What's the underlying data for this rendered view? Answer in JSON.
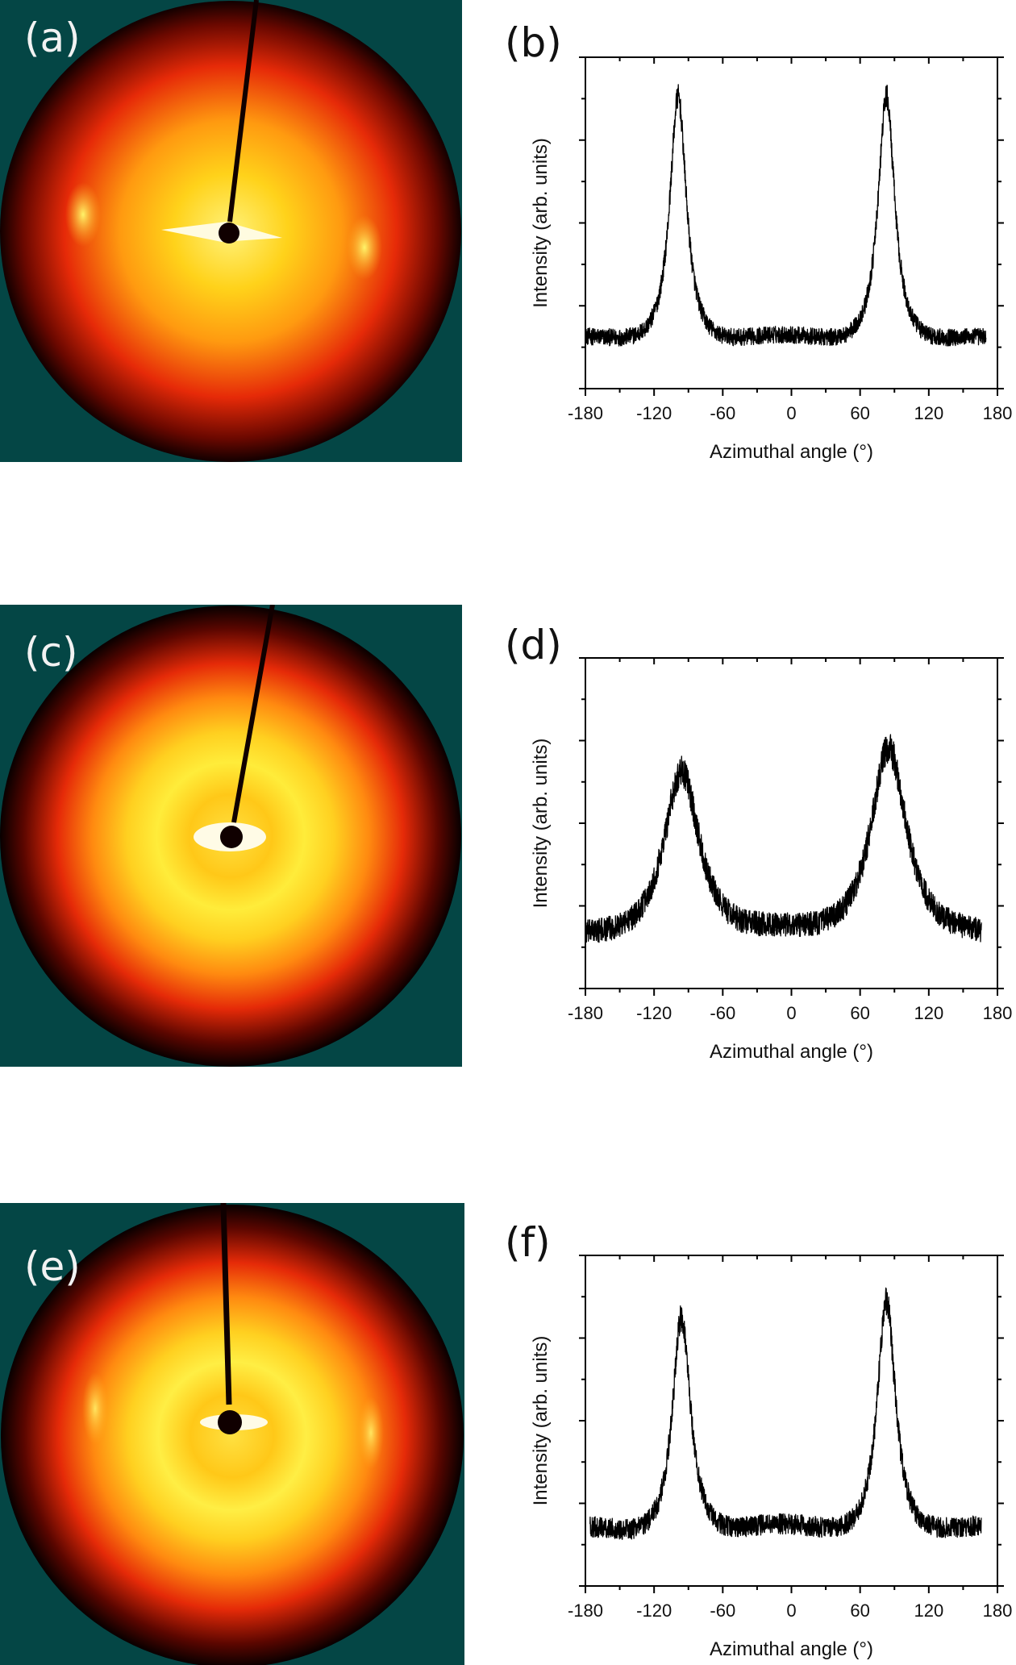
{
  "colors": {
    "detector_background": "#044645",
    "line": "#000000"
  },
  "panels": {
    "a": {
      "label": "(a)"
    },
    "b": {
      "label": "(b)"
    },
    "c": {
      "label": "(c)"
    },
    "d": {
      "label": "(d)"
    },
    "e": {
      "label": "(e)"
    },
    "f": {
      "label": "(f)"
    }
  },
  "chart_data": [
    {
      "panel": "b",
      "type": "line",
      "xlabel": "Azimuthal angle (°)",
      "ylabel": "Intensity (arb. units)",
      "xlim": [
        -180,
        180
      ],
      "ylim": [
        0,
        1
      ],
      "xticks": [
        -180,
        -120,
        -60,
        0,
        60,
        120,
        180
      ],
      "xtick_labels": [
        "-180",
        "-120",
        "-60",
        "0",
        "60",
        "120",
        "180"
      ],
      "y_tick_labels_shown": false,
      "grid": false,
      "x_range": [
        -180,
        170
      ],
      "baseline": 0.1,
      "noise": 0.025,
      "peaks": [
        {
          "center": -99,
          "height": 0.78,
          "width": 9
        },
        {
          "center": 83,
          "height": 0.78,
          "width": 9
        }
      ],
      "tails": 0.08
    },
    {
      "panel": "d",
      "type": "line",
      "xlabel": "Azimuthal angle (°)",
      "ylabel": "Intensity (arb. units)",
      "xlim": [
        -180,
        180
      ],
      "ylim": [
        0,
        1
      ],
      "xticks": [
        -180,
        -120,
        -60,
        0,
        60,
        120,
        180
      ],
      "xtick_labels": [
        "-180",
        "-120",
        "-60",
        "0",
        "60",
        "120",
        "180"
      ],
      "y_tick_labels_shown": false,
      "grid": false,
      "x_range": [
        -180,
        166
      ],
      "baseline": 0.09,
      "noise": 0.035,
      "peaks": [
        {
          "center": -96,
          "height": 0.56,
          "width": 20
        },
        {
          "center": 85,
          "height": 0.63,
          "width": 20
        }
      ],
      "tails": 0.08
    },
    {
      "panel": "f",
      "type": "line",
      "xlabel": "Azimuthal angle (°)",
      "ylabel": "Intensity (arb. units)",
      "xlim": [
        -180,
        180
      ],
      "ylim": [
        0,
        1
      ],
      "xticks": [
        -180,
        -120,
        -60,
        0,
        60,
        120,
        180
      ],
      "xtick_labels": [
        "-180",
        "-120",
        "-60",
        "0",
        "60",
        "120",
        "180"
      ],
      "y_tick_labels_shown": false,
      "grid": false,
      "x_range": [
        -176,
        166
      ],
      "baseline": 0.11,
      "noise": 0.03,
      "peaks": [
        {
          "center": -96,
          "height": 0.7,
          "width": 10
        },
        {
          "center": 83,
          "height": 0.75,
          "width": 10
        }
      ],
      "tails": 0.1
    }
  ]
}
